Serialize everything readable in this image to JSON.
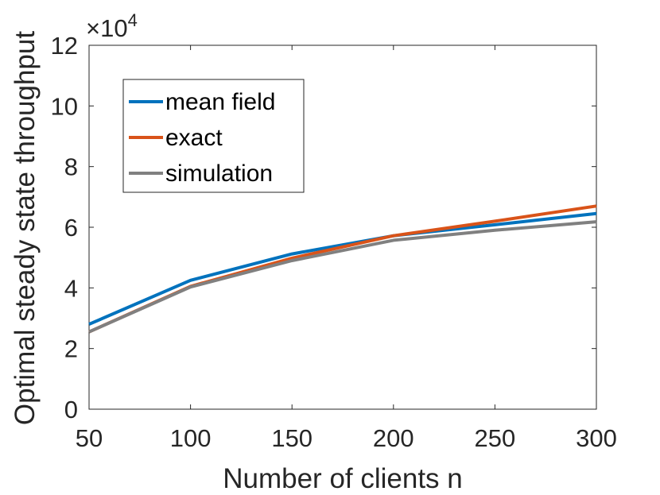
{
  "chart_data": {
    "type": "line",
    "title": "",
    "xlabel": "Number of clients n",
    "ylabel": "Optimal steady state throughput",
    "xlim": [
      50,
      300
    ],
    "ylim": [
      0,
      12
    ],
    "y_multiplier": "×10",
    "y_exponent": "4",
    "xticks": [
      50,
      100,
      150,
      200,
      250,
      300
    ],
    "yticks": [
      0,
      2,
      4,
      6,
      8,
      10,
      12
    ],
    "xtick_labels": [
      "50",
      "100",
      "150",
      "200",
      "250",
      "300"
    ],
    "ytick_labels": [
      "0",
      "2",
      "4",
      "6",
      "8",
      "10",
      "12"
    ],
    "x": [
      50,
      100,
      150,
      200,
      250,
      300
    ],
    "series": [
      {
        "name": "mean field",
        "color": "#0072bd",
        "values": [
          2.8,
          4.25,
          5.12,
          5.72,
          6.08,
          6.45
        ]
      },
      {
        "name": "exact",
        "color": "#d95319",
        "values": [
          2.55,
          4.05,
          4.98,
          5.72,
          6.2,
          6.7
        ]
      },
      {
        "name": "simulation",
        "color": "#808080",
        "values": [
          2.55,
          4.03,
          4.9,
          5.57,
          5.9,
          6.18
        ]
      }
    ],
    "legend": {
      "placement": "top-left"
    },
    "grid": false
  }
}
